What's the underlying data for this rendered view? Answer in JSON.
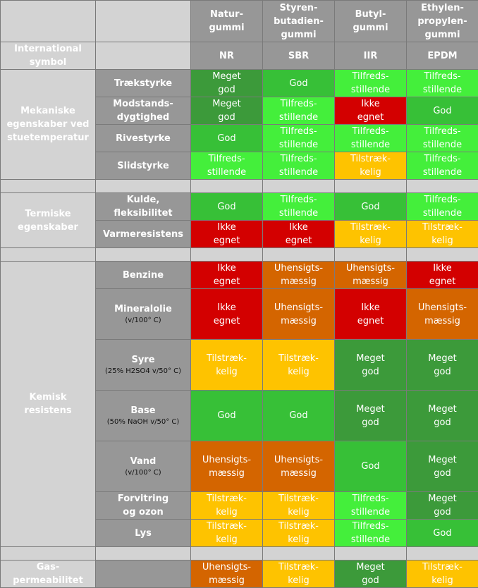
{
  "colors": {
    "meget_god": "#3c9a3a",
    "god": "#37c037",
    "tilfredsstillende": "#44ef3b",
    "tilstraekkelig": "#fec300",
    "uhensigtsmaessig": "#d46500",
    "ikke_egnet": "#d30000",
    "header_dark": "#979797",
    "header_light": "#d3d3d3"
  },
  "header": {
    "columns": [
      "Natur-\ngummi",
      "Styren-\nbutadien-\ngummi",
      "Butyl-\ngummi",
      "Ethylen-\npropylen-\ngummi"
    ],
    "symbol_label": "International\nsymbol",
    "symbols": [
      "NR",
      "SBR",
      "IIR",
      "EPDM"
    ]
  },
  "ratings": {
    "meget_god": "Meget\ngod",
    "god": "God",
    "tilfredsstillende": "Tilfreds-\nstillende",
    "tilstraekkelig": "Tilstræk-\nkelig",
    "uhensigtsmaessig": "Uhensigts-\nmæssig",
    "ikke_egnet": "Ikke\negnet"
  },
  "groups": {
    "mechanical": "Mekaniske\negenskaber ved\nstuetemperatur",
    "thermal": "Termiske\negenskaber",
    "chemical": "Kemisk\nresistens",
    "gas": "Gas-permeabilitet"
  },
  "rows": {
    "traek": {
      "label": "Trækstyrke"
    },
    "modstand": {
      "label": "Modstands-\ndygtighed"
    },
    "rive": {
      "label": "Rivestyrke"
    },
    "slid": {
      "label": "Slidstyrke"
    },
    "kulde": {
      "label": "Kulde,\nfleksibilitet"
    },
    "varme": {
      "label": "Varmeresistens"
    },
    "benzine": {
      "label": "Benzine"
    },
    "mineral": {
      "label": "Mineralolie",
      "note": "(v/100° C)"
    },
    "syre": {
      "label": "Syre",
      "note": "(25% H2SO4 v/50° C)"
    },
    "base": {
      "label": "Base",
      "note": "(50% NaOH v/50° C)"
    },
    "vand": {
      "label": "Vand",
      "note": "(v/100° C)"
    },
    "forvitring": {
      "label": "Forvitring\nog ozon"
    },
    "lys": {
      "label": "Lys"
    }
  }
}
